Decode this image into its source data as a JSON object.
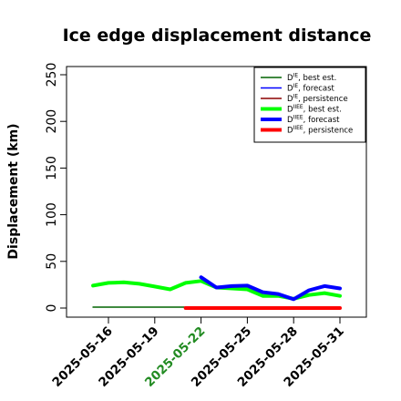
{
  "chart_data": {
    "type": "line",
    "title": "Ice edge displacement distance",
    "ylabel": "Displacement (km)",
    "xlabel": "",
    "ylim": [
      0,
      250
    ],
    "yticks": [
      0,
      50,
      100,
      150,
      200,
      250
    ],
    "xlim": [
      "2025-05-14",
      "2025-06-01"
    ],
    "xticks": [
      "2025-05-16",
      "2025-05-19",
      "2025-05-22",
      "2025-05-25",
      "2025-05-28",
      "2025-05-31"
    ],
    "highlight_tick": "2025-05-22",
    "highlight_color": "#228B22",
    "grid": false,
    "legend_position": "top-right",
    "series": [
      {
        "name": "D^IE, best est.",
        "color": "#006400",
        "width": "thin",
        "points": [
          [
            "2025-05-15",
            1
          ],
          [
            "2025-05-16",
            1
          ],
          [
            "2025-05-17",
            1
          ],
          [
            "2025-05-18",
            1
          ],
          [
            "2025-05-19",
            1
          ],
          [
            "2025-05-20",
            1
          ],
          [
            "2025-05-21",
            1
          ]
        ]
      },
      {
        "name": "D^IE, forecast",
        "color": "#0000ff",
        "width": "thin",
        "points": [
          [
            "2025-05-22",
            1
          ],
          [
            "2025-05-23",
            1
          ],
          [
            "2025-05-24",
            1
          ],
          [
            "2025-05-25",
            1
          ],
          [
            "2025-05-26",
            1
          ],
          [
            "2025-05-27",
            1
          ],
          [
            "2025-05-28",
            1
          ],
          [
            "2025-05-29",
            1
          ],
          [
            "2025-05-30",
            1
          ],
          [
            "2025-05-31",
            1
          ]
        ]
      },
      {
        "name": "D^IE, persistence",
        "color": "#8b0000",
        "width": "thin",
        "points": [
          [
            "2025-05-21",
            1
          ],
          [
            "2025-05-31",
            1
          ]
        ]
      },
      {
        "name": "D^IIEE, best est.",
        "color": "#00ff00",
        "width": "thick",
        "points": [
          [
            "2025-05-15",
            24
          ],
          [
            "2025-05-16",
            27
          ],
          [
            "2025-05-17",
            27.5
          ],
          [
            "2025-05-18",
            26
          ],
          [
            "2025-05-19",
            23
          ],
          [
            "2025-05-20",
            20
          ],
          [
            "2025-05-21",
            27
          ],
          [
            "2025-05-22",
            29
          ],
          [
            "2025-05-23",
            22
          ],
          [
            "2025-05-24",
            21
          ],
          [
            "2025-05-25",
            20
          ],
          [
            "2025-05-26",
            13
          ],
          [
            "2025-05-27",
            13
          ],
          [
            "2025-05-28",
            10
          ],
          [
            "2025-05-29",
            14
          ],
          [
            "2025-05-30",
            16
          ],
          [
            "2025-05-31",
            13
          ]
        ]
      },
      {
        "name": "D^IIEE, forecast",
        "color": "#0000ff",
        "width": "thick",
        "points": [
          [
            "2025-05-22",
            33
          ],
          [
            "2025-05-23",
            22
          ],
          [
            "2025-05-24",
            23.5
          ],
          [
            "2025-05-25",
            24
          ],
          [
            "2025-05-26",
            17
          ],
          [
            "2025-05-27",
            15
          ],
          [
            "2025-05-28",
            9.5
          ],
          [
            "2025-05-29",
            19
          ],
          [
            "2025-05-30",
            23.5
          ],
          [
            "2025-05-31",
            21
          ]
        ]
      },
      {
        "name": "D^IIEE, persistence",
        "color": "#ff0000",
        "width": "thick",
        "points": [
          [
            "2025-05-21",
            0
          ],
          [
            "2025-05-31",
            0
          ]
        ]
      }
    ]
  },
  "legend_entries": [
    {
      "base": "D",
      "sup": "IE",
      "text": ", best est.",
      "color": "#006400",
      "width": "thin"
    },
    {
      "base": "D",
      "sup": "IE",
      "text": ", forecast",
      "color": "#0000ff",
      "width": "thin"
    },
    {
      "base": "D",
      "sup": "IE",
      "text": ", persistence",
      "color": "#8b0000",
      "width": "thin"
    },
    {
      "base": "D",
      "sup": "IIEE",
      "text": ", best est.",
      "color": "#00ff00",
      "width": "thick"
    },
    {
      "base": "D",
      "sup": "IIEE",
      "text": ", forecast",
      "color": "#0000ff",
      "width": "thick"
    },
    {
      "base": "D",
      "sup": "IIEE",
      "text": ", persistence",
      "color": "#ff0000",
      "width": "thick"
    }
  ]
}
